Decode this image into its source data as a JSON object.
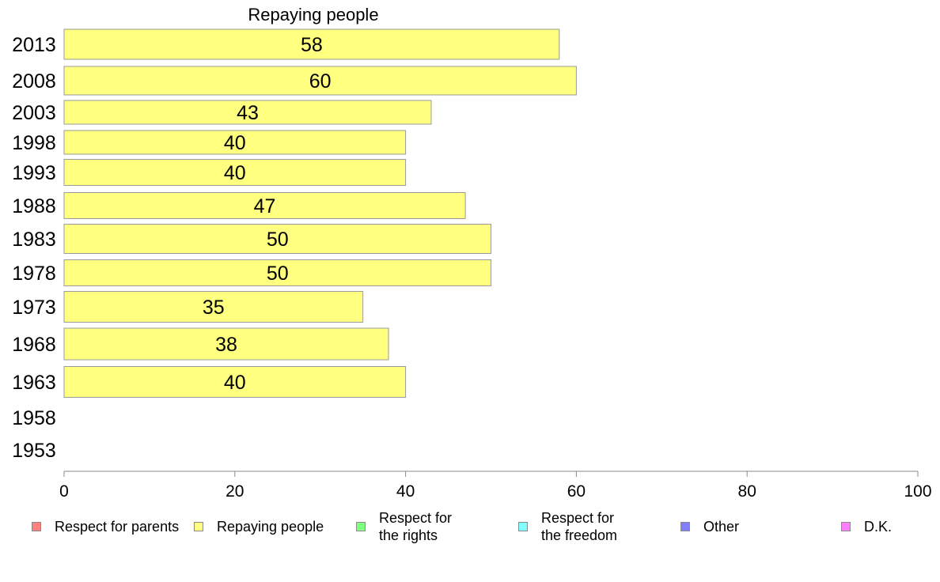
{
  "chart_data": {
    "type": "bar",
    "orientation": "horizontal",
    "title": "Repaying people",
    "xlabel": "",
    "ylabel": "",
    "categories": [
      "2013",
      "2008",
      "2003",
      "1998",
      "1993",
      "1988",
      "1983",
      "1978",
      "1973",
      "1968",
      "1963",
      "1958",
      "1953"
    ],
    "series": [
      {
        "name": "Repaying people",
        "values": [
          58,
          60,
          43,
          40,
          40,
          47,
          50,
          50,
          35,
          38,
          40,
          null,
          null
        ],
        "color": "#ffff80"
      }
    ],
    "xlim": [
      0,
      100
    ],
    "xticks": [
      0,
      20,
      40,
      60,
      80,
      100
    ],
    "grid": false,
    "legend_position": "bottom"
  },
  "legend": [
    {
      "label": "Respect for parents",
      "color": "#ff8080"
    },
    {
      "label": "Repaying people",
      "color": "#ffff80"
    },
    {
      "label": "Respect for\nthe rights",
      "color": "#80ff80"
    },
    {
      "label": "Respect for\nthe freedom",
      "color": "#80ffff"
    },
    {
      "label": "Other",
      "color": "#8080ff"
    },
    {
      "label": "D.K.",
      "color": "#ff80ff"
    }
  ]
}
